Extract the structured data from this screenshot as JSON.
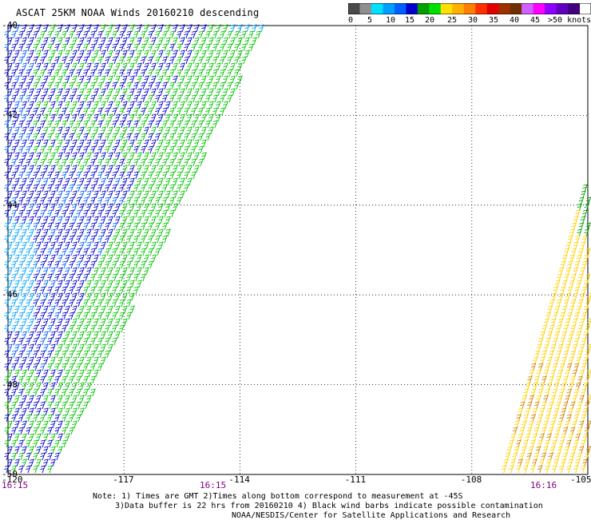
{
  "header": {
    "title": "ASCAT 25KM NOAA Winds 20160210 descending"
  },
  "legend": {
    "colors": [
      "#4a4a4a",
      "#8f8f8f",
      "#00e0ff",
      "#00a0ff",
      "#0060ff",
      "#0000cc",
      "#00a000",
      "#00e000",
      "#ffe000",
      "#ffb000",
      "#ff8000",
      "#ff3000",
      "#e00000",
      "#a03000",
      "#703000",
      "#d060ff",
      "#ff00ff",
      "#9000ff",
      "#6000c0",
      "#400080"
    ],
    "labels": [
      "0",
      "5",
      "10",
      "15",
      "20",
      "25",
      "30",
      "35",
      "40",
      "45",
      ">50 knots"
    ]
  },
  "map": {
    "lat_labels": [
      "-40",
      "-42",
      "-44",
      "-46",
      "-48",
      "-50"
    ],
    "lon_labels": [
      "-120",
      "-117",
      "-114",
      "-111",
      "-108",
      "-105"
    ],
    "time_labels": [
      "16:15",
      "16:15",
      "16:16"
    ],
    "lat_range": [
      -50,
      -40
    ],
    "lon_range": [
      -120,
      -105
    ],
    "grid": true
  },
  "footer": {
    "note1": "Note: 1) Times are GMT 2)Times along bottom correspond to measurement at -45S",
    "note2": "3)Data buffer is 22 hrs from 20160210 4) Black wind barbs indicate possible contamination",
    "note3": "NOAA/NESDIS/Center for Satellite Applications and Research"
  }
}
